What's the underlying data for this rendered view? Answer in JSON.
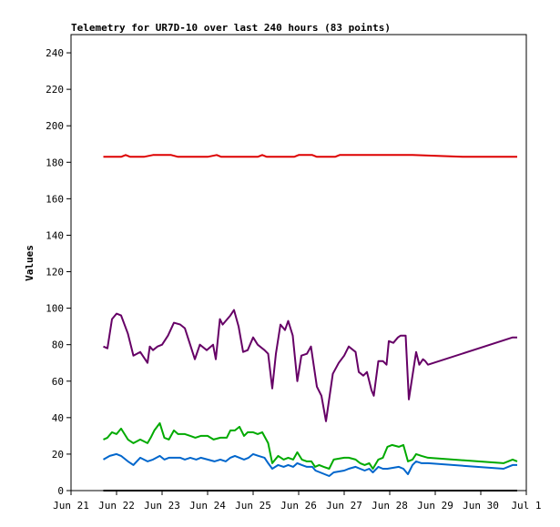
{
  "chart_data": {
    "type": "line",
    "title": "Telemetry for UR7D-10 over last 240 hours (83 points)",
    "xlabel": "",
    "ylabel": "Values",
    "xlim": [
      "Jun 21",
      "Jul 1"
    ],
    "ylim": [
      0,
      250
    ],
    "x_ticks": [
      "Jun 21",
      "Jun 22",
      "Jun 23",
      "Jun 24",
      "Jun 25",
      "Jun 26",
      "Jun 27",
      "Jun 28",
      "Jun 29",
      "Jun 30",
      "Jul 1"
    ],
    "y_ticks": [
      0,
      20,
      40,
      60,
      80,
      100,
      120,
      140,
      160,
      180,
      200,
      220,
      240
    ],
    "grid": false,
    "legend": "none",
    "x_unit": "days from Jun 21 00:00",
    "series": [
      {
        "color": "#dd0000",
        "points": [
          [
            0.71,
            183
          ],
          [
            1.1,
            183
          ],
          [
            1.2,
            184
          ],
          [
            1.3,
            183
          ],
          [
            1.6,
            183
          ],
          [
            1.8,
            184
          ],
          [
            2.2,
            184
          ],
          [
            2.35,
            183
          ],
          [
            3.0,
            183
          ],
          [
            3.2,
            184
          ],
          [
            3.3,
            183
          ],
          [
            4.1,
            183
          ],
          [
            4.2,
            184
          ],
          [
            4.3,
            183
          ],
          [
            4.9,
            183
          ],
          [
            5.0,
            184
          ],
          [
            5.3,
            184
          ],
          [
            5.4,
            183
          ],
          [
            5.8,
            183
          ],
          [
            5.9,
            184
          ],
          [
            7.5,
            184
          ],
          [
            8.6,
            183
          ],
          [
            9.8,
            183
          ]
        ]
      },
      {
        "color": "#660066",
        "points": [
          [
            0.71,
            79
          ],
          [
            0.8,
            78
          ],
          [
            0.9,
            94
          ],
          [
            1.0,
            97
          ],
          [
            1.1,
            96
          ],
          [
            1.25,
            86
          ],
          [
            1.37,
            74
          ],
          [
            1.52,
            76
          ],
          [
            1.68,
            70
          ],
          [
            1.73,
            79
          ],
          [
            1.8,
            77
          ],
          [
            1.9,
            79
          ],
          [
            2.0,
            80
          ],
          [
            2.13,
            85
          ],
          [
            2.26,
            92
          ],
          [
            2.4,
            91
          ],
          [
            2.5,
            89
          ],
          [
            2.63,
            79
          ],
          [
            2.72,
            72
          ],
          [
            2.83,
            80
          ],
          [
            2.98,
            77
          ],
          [
            3.12,
            80
          ],
          [
            3.18,
            72
          ],
          [
            3.27,
            94
          ],
          [
            3.33,
            91
          ],
          [
            3.5,
            96
          ],
          [
            3.58,
            99
          ],
          [
            3.68,
            90
          ],
          [
            3.78,
            76
          ],
          [
            3.88,
            77
          ],
          [
            4.0,
            84
          ],
          [
            4.1,
            80
          ],
          [
            4.25,
            77
          ],
          [
            4.33,
            75
          ],
          [
            4.42,
            56
          ],
          [
            4.5,
            75
          ],
          [
            4.6,
            91
          ],
          [
            4.7,
            88
          ],
          [
            4.77,
            93
          ],
          [
            4.87,
            85
          ],
          [
            4.97,
            60
          ],
          [
            5.06,
            74
          ],
          [
            5.18,
            75
          ],
          [
            5.27,
            79
          ],
          [
            5.4,
            57
          ],
          [
            5.5,
            52
          ],
          [
            5.6,
            38
          ],
          [
            5.75,
            64
          ],
          [
            5.88,
            70
          ],
          [
            6.0,
            74
          ],
          [
            6.1,
            79
          ],
          [
            6.25,
            76
          ],
          [
            6.32,
            65
          ],
          [
            6.42,
            63
          ],
          [
            6.5,
            65
          ],
          [
            6.6,
            55
          ],
          [
            6.65,
            52
          ],
          [
            6.75,
            71
          ],
          [
            6.85,
            71
          ],
          [
            6.93,
            69
          ],
          [
            6.98,
            82
          ],
          [
            7.08,
            81
          ],
          [
            7.18,
            84
          ],
          [
            7.24,
            85
          ],
          [
            7.35,
            85
          ],
          [
            7.42,
            50
          ],
          [
            7.5,
            63
          ],
          [
            7.58,
            76
          ],
          [
            7.65,
            69
          ],
          [
            7.73,
            72
          ],
          [
            7.78,
            71
          ],
          [
            7.84,
            69
          ],
          [
            9.7,
            84
          ],
          [
            9.8,
            84
          ]
        ]
      },
      {
        "color": "#00aa00",
        "points": [
          [
            0.71,
            28
          ],
          [
            0.8,
            29
          ],
          [
            0.9,
            32
          ],
          [
            1.0,
            31
          ],
          [
            1.1,
            34
          ],
          [
            1.25,
            28
          ],
          [
            1.37,
            26
          ],
          [
            1.52,
            28
          ],
          [
            1.68,
            26
          ],
          [
            1.75,
            29
          ],
          [
            1.83,
            33
          ],
          [
            1.95,
            37
          ],
          [
            2.05,
            29
          ],
          [
            2.15,
            28
          ],
          [
            2.26,
            33
          ],
          [
            2.35,
            31
          ],
          [
            2.5,
            31
          ],
          [
            2.62,
            30
          ],
          [
            2.73,
            29
          ],
          [
            2.85,
            30
          ],
          [
            3.0,
            30
          ],
          [
            3.13,
            28
          ],
          [
            3.28,
            29
          ],
          [
            3.42,
            29
          ],
          [
            3.5,
            33
          ],
          [
            3.6,
            33
          ],
          [
            3.7,
            35
          ],
          [
            3.8,
            30
          ],
          [
            3.88,
            32
          ],
          [
            4.0,
            32
          ],
          [
            4.1,
            31
          ],
          [
            4.2,
            32
          ],
          [
            4.33,
            26
          ],
          [
            4.42,
            15
          ],
          [
            4.55,
            19
          ],
          [
            4.67,
            17
          ],
          [
            4.77,
            18
          ],
          [
            4.88,
            17
          ],
          [
            4.97,
            21
          ],
          [
            5.07,
            17
          ],
          [
            5.18,
            16
          ],
          [
            5.28,
            16
          ],
          [
            5.36,
            13
          ],
          [
            5.45,
            14
          ],
          [
            5.55,
            13
          ],
          [
            5.67,
            12
          ],
          [
            5.77,
            17
          ],
          [
            6.0,
            18
          ],
          [
            6.1,
            18
          ],
          [
            6.25,
            17
          ],
          [
            6.35,
            15
          ],
          [
            6.45,
            14
          ],
          [
            6.55,
            15
          ],
          [
            6.63,
            12
          ],
          [
            6.75,
            17
          ],
          [
            6.85,
            18
          ],
          [
            6.95,
            24
          ],
          [
            7.05,
            25
          ],
          [
            7.2,
            24
          ],
          [
            7.3,
            25
          ],
          [
            7.4,
            16
          ],
          [
            7.5,
            17
          ],
          [
            7.58,
            20
          ],
          [
            7.7,
            19
          ],
          [
            7.84,
            18
          ],
          [
            9.5,
            15
          ],
          [
            9.6,
            16
          ],
          [
            9.7,
            17
          ],
          [
            9.8,
            16
          ]
        ]
      },
      {
        "color": "#0066cc",
        "points": [
          [
            0.71,
            17
          ],
          [
            0.85,
            19
          ],
          [
            1.0,
            20
          ],
          [
            1.1,
            19
          ],
          [
            1.25,
            16
          ],
          [
            1.37,
            14
          ],
          [
            1.52,
            18
          ],
          [
            1.68,
            16
          ],
          [
            1.8,
            17
          ],
          [
            1.95,
            19
          ],
          [
            2.05,
            17
          ],
          [
            2.15,
            18
          ],
          [
            2.26,
            18
          ],
          [
            2.4,
            18
          ],
          [
            2.5,
            17
          ],
          [
            2.62,
            18
          ],
          [
            2.75,
            17
          ],
          [
            2.85,
            18
          ],
          [
            3.0,
            17
          ],
          [
            3.15,
            16
          ],
          [
            3.28,
            17
          ],
          [
            3.4,
            16
          ],
          [
            3.5,
            18
          ],
          [
            3.6,
            19
          ],
          [
            3.7,
            18
          ],
          [
            3.8,
            17
          ],
          [
            3.9,
            18
          ],
          [
            4.0,
            20
          ],
          [
            4.12,
            19
          ],
          [
            4.25,
            18
          ],
          [
            4.33,
            15
          ],
          [
            4.42,
            12
          ],
          [
            4.55,
            14
          ],
          [
            4.67,
            13
          ],
          [
            4.77,
            14
          ],
          [
            4.88,
            13
          ],
          [
            4.97,
            15
          ],
          [
            5.07,
            14
          ],
          [
            5.18,
            13
          ],
          [
            5.3,
            13
          ],
          [
            5.37,
            11
          ],
          [
            5.47,
            10
          ],
          [
            5.57,
            9
          ],
          [
            5.67,
            8
          ],
          [
            5.77,
            10
          ],
          [
            6.0,
            11
          ],
          [
            6.1,
            12
          ],
          [
            6.25,
            13
          ],
          [
            6.35,
            12
          ],
          [
            6.45,
            11
          ],
          [
            6.55,
            12
          ],
          [
            6.63,
            10
          ],
          [
            6.75,
            13
          ],
          [
            6.85,
            12
          ],
          [
            6.95,
            12
          ],
          [
            7.2,
            13
          ],
          [
            7.3,
            12
          ],
          [
            7.4,
            9
          ],
          [
            7.5,
            14
          ],
          [
            7.58,
            16
          ],
          [
            7.7,
            15
          ],
          [
            7.84,
            15
          ],
          [
            9.5,
            12
          ],
          [
            9.6,
            13
          ],
          [
            9.7,
            14
          ],
          [
            9.8,
            14
          ]
        ]
      },
      {
        "color": "#000000",
        "points": [
          [
            0.71,
            0
          ],
          [
            9.8,
            0
          ]
        ]
      }
    ]
  }
}
